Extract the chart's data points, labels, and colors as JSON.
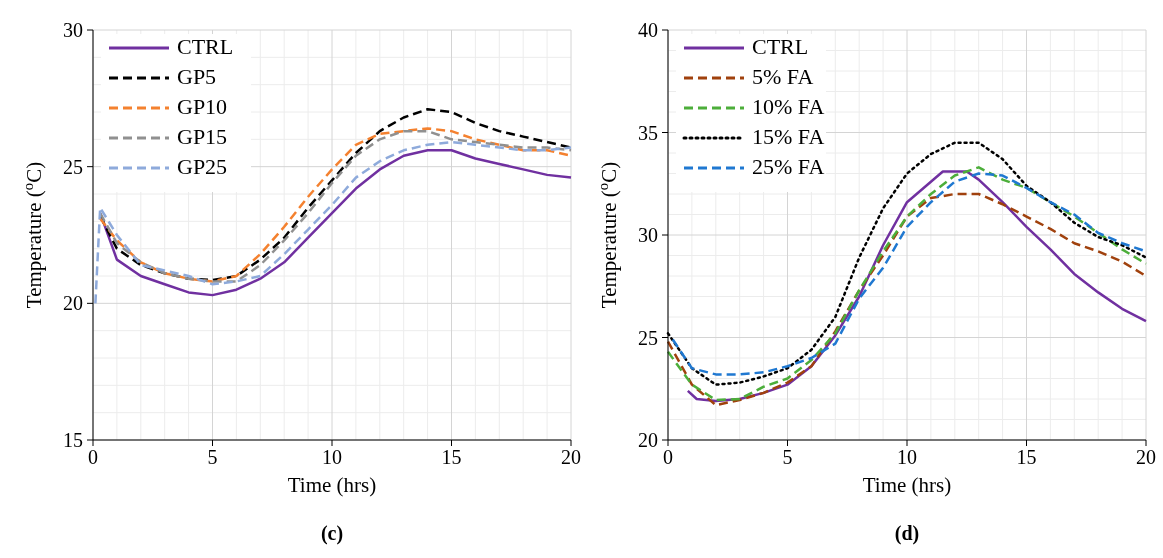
{
  "chart_data": [
    {
      "type": "line",
      "xlabel": "Time (hrs)",
      "ylabel": "Temperature ($^{o}$C)",
      "xlim": [
        0,
        20
      ],
      "ylim": [
        15,
        30
      ],
      "xticks": [
        0,
        5,
        10,
        15,
        20
      ],
      "yticks": [
        15,
        20,
        25,
        30
      ],
      "grid": true,
      "legend": "top left",
      "annotations": [
        "(c)"
      ],
      "x": [
        0.3,
        1,
        2,
        3,
        4,
        5,
        6,
        7,
        8,
        9,
        10,
        11,
        12,
        13,
        14,
        15,
        16,
        17,
        18,
        19,
        20
      ],
      "series": [
        {
          "name": "CTRL",
          "color": "#7030a0",
          "line_style": "solid",
          "values": [
            23.3,
            21.6,
            21.0,
            20.7,
            20.4,
            20.3,
            20.5,
            20.9,
            21.5,
            22.4,
            23.3,
            24.2,
            24.9,
            25.4,
            25.6,
            25.6,
            25.3,
            25.1,
            24.9,
            24.7,
            24.6
          ]
        },
        {
          "name": "GP5",
          "color": "#000000",
          "line_style": "dashed",
          "values": [
            23.2,
            22.0,
            21.4,
            21.1,
            20.9,
            20.85,
            21.0,
            21.6,
            22.4,
            23.5,
            24.5,
            25.5,
            26.3,
            26.8,
            27.1,
            27.0,
            26.6,
            26.3,
            26.1,
            25.9,
            25.7
          ]
        },
        {
          "name": "GP10",
          "color": "#f4812f",
          "line_style": "dashed",
          "values": [
            23.1,
            22.3,
            21.5,
            21.1,
            20.9,
            20.8,
            21.0,
            21.8,
            22.8,
            23.9,
            24.9,
            25.8,
            26.2,
            26.3,
            26.4,
            26.3,
            26.0,
            25.8,
            25.6,
            25.6,
            25.4
          ]
        },
        {
          "name": "GP15",
          "color": "#909090",
          "line_style": "dashed",
          "values": [
            23.3,
            22.2,
            21.5,
            21.1,
            20.9,
            20.8,
            20.8,
            21.4,
            22.3,
            23.3,
            24.4,
            25.4,
            26.0,
            26.3,
            26.3,
            26.0,
            25.9,
            25.8,
            25.7,
            25.7,
            25.6
          ]
        },
        {
          "name": "GP25",
          "color": "#8eaadb",
          "line_style": "dashed",
          "x": [
            0.1,
            0.3,
            1,
            2,
            3,
            4,
            5,
            6,
            7,
            8,
            9,
            10,
            11,
            12,
            13,
            14,
            15,
            16,
            17,
            18,
            19,
            20
          ],
          "values": [
            20.0,
            23.5,
            22.5,
            21.4,
            21.2,
            21.0,
            20.7,
            20.8,
            21.0,
            21.8,
            22.7,
            23.6,
            24.6,
            25.2,
            25.6,
            25.8,
            25.9,
            25.8,
            25.7,
            25.6,
            25.6,
            25.7
          ]
        }
      ]
    },
    {
      "type": "line",
      "xlabel": "Time (hrs)",
      "ylabel": "Temperature ($^{o}$C)",
      "xlim": [
        0,
        20
      ],
      "ylim": [
        20,
        40
      ],
      "xticks": [
        0,
        5,
        10,
        15,
        20
      ],
      "yticks": [
        20,
        25,
        30,
        35,
        40
      ],
      "grid": true,
      "legend": "top left",
      "annotations": [
        "(d)"
      ],
      "x": [
        0,
        1,
        2,
        3,
        4,
        5,
        6,
        7,
        8,
        9,
        10,
        11,
        12,
        13,
        14,
        15,
        16,
        17,
        18,
        19,
        20
      ],
      "series": [
        {
          "name": "CTRL",
          "color": "#7030a0",
          "line_style": "solid",
          "x": [
            0.83,
            1.2,
            2,
            3,
            4,
            5,
            6,
            7,
            8,
            9,
            10,
            11,
            11.5,
            12.5,
            13,
            14,
            15,
            16,
            17,
            18,
            19,
            20
          ],
          "values": [
            22.4,
            22.0,
            21.9,
            22.0,
            22.3,
            22.7,
            23.6,
            25.1,
            27.0,
            29.5,
            31.6,
            32.6,
            33.1,
            33.1,
            32.7,
            31.6,
            30.4,
            29.3,
            28.1,
            27.2,
            26.4,
            25.8
          ]
        },
        {
          "name": "5% FA",
          "color": "#a0410d",
          "line_style": "dashed",
          "values": [
            24.8,
            22.7,
            21.7,
            21.95,
            22.3,
            22.8,
            23.6,
            25.3,
            27.3,
            29.0,
            30.9,
            31.8,
            32.0,
            32.0,
            31.5,
            30.9,
            30.3,
            29.6,
            29.2,
            28.7,
            28.0
          ]
        },
        {
          "name": "10% FA",
          "color": "#4cae3a",
          "line_style": "dashed",
          "values": [
            24.3,
            22.7,
            21.95,
            22.0,
            22.6,
            23.0,
            23.9,
            25.2,
            27.3,
            29.2,
            30.9,
            32.0,
            32.9,
            33.3,
            32.7,
            32.3,
            31.6,
            30.9,
            30.1,
            29.3,
            28.6
          ]
        },
        {
          "name": "15% FA",
          "color": "#000000",
          "line_style": "dotted",
          "values": [
            25.2,
            23.5,
            22.7,
            22.8,
            23.1,
            23.5,
            24.4,
            26.0,
            28.9,
            31.3,
            33.0,
            33.95,
            34.5,
            34.5,
            33.7,
            32.4,
            31.6,
            30.6,
            29.9,
            29.5,
            28.9
          ]
        },
        {
          "name": "25% FA",
          "color": "#1f78d1",
          "line_style": "dashed",
          "x": [
            0.2,
            1,
            2,
            3,
            4,
            5,
            6,
            7,
            8,
            9,
            10,
            11,
            12,
            13,
            14,
            15,
            16,
            17,
            18,
            19,
            20
          ],
          "values": [
            24.9,
            23.5,
            23.2,
            23.2,
            23.3,
            23.6,
            24.0,
            24.7,
            26.9,
            28.4,
            30.4,
            31.6,
            32.6,
            33.0,
            32.9,
            32.3,
            31.6,
            31.0,
            30.1,
            29.6,
            29.2
          ]
        }
      ]
    }
  ]
}
